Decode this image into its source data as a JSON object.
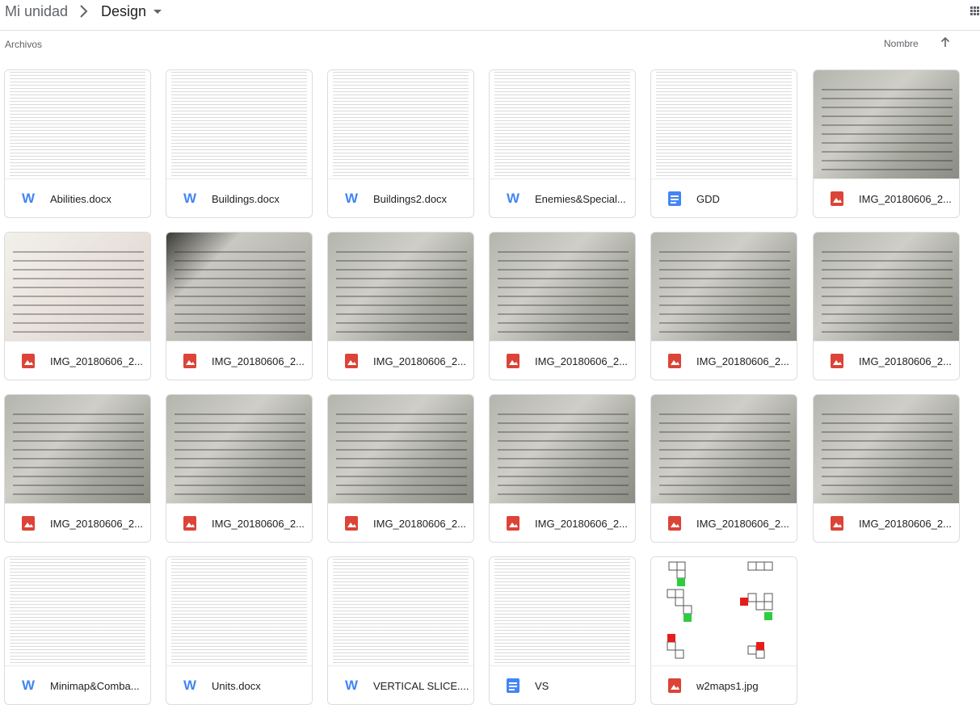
{
  "header": {
    "root_label": "Mi unidad",
    "folder_label": "Design"
  },
  "section": {
    "label": "Archivos",
    "sort_label": "Nombre"
  },
  "files": [
    {
      "name": "Abilities.docx",
      "type": "word",
      "thumb": "doc"
    },
    {
      "name": "Buildings.docx",
      "type": "word",
      "thumb": "doc"
    },
    {
      "name": "Buildings2.docx",
      "type": "word",
      "thumb": "doc"
    },
    {
      "name": "Enemies&Special...",
      "type": "word",
      "thumb": "doc"
    },
    {
      "name": "GDD",
      "type": "gdoc",
      "thumb": "doc"
    },
    {
      "name": "IMG_20180606_2...",
      "type": "image",
      "thumb": "photo"
    },
    {
      "name": "IMG_20180606_2...",
      "type": "image",
      "thumb": "photo"
    },
    {
      "name": "IMG_20180606_2...",
      "type": "image",
      "thumb": "photo"
    },
    {
      "name": "IMG_20180606_2...",
      "type": "image",
      "thumb": "photo"
    },
    {
      "name": "IMG_20180606_2...",
      "type": "image",
      "thumb": "photo"
    },
    {
      "name": "IMG_20180606_2...",
      "type": "image",
      "thumb": "photo"
    },
    {
      "name": "IMG_20180606_2...",
      "type": "image",
      "thumb": "photo"
    },
    {
      "name": "IMG_20180606_2...",
      "type": "image",
      "thumb": "photo"
    },
    {
      "name": "IMG_20180606_2...",
      "type": "image",
      "thumb": "photo"
    },
    {
      "name": "IMG_20180606_2...",
      "type": "image",
      "thumb": "photo"
    },
    {
      "name": "IMG_20180606_2...",
      "type": "image",
      "thumb": "photo"
    },
    {
      "name": "IMG_20180606_2...",
      "type": "image",
      "thumb": "photo"
    },
    {
      "name": "IMG_20180606_2...",
      "type": "image",
      "thumb": "photo"
    },
    {
      "name": "Minimap&Comba...",
      "type": "word",
      "thumb": "doc"
    },
    {
      "name": "Units.docx",
      "type": "word",
      "thumb": "doc"
    },
    {
      "name": "VERTICAL SLICE....",
      "type": "word",
      "thumb": "doc"
    },
    {
      "name": "VS",
      "type": "gdoc",
      "thumb": "doc"
    },
    {
      "name": "w2maps1.jpg",
      "type": "image",
      "thumb": "map"
    }
  ],
  "colors": {
    "word": "#4285f4",
    "image": "#db4437",
    "gdoc": "#4285f4"
  }
}
